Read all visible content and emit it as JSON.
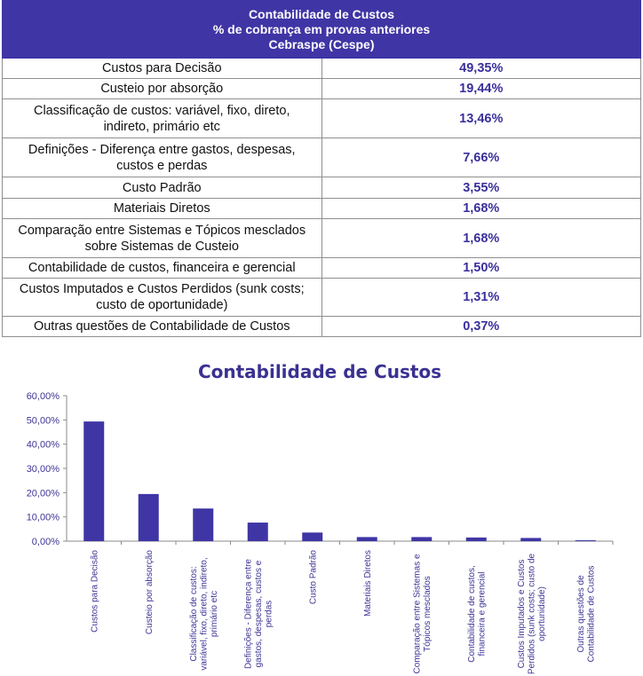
{
  "table": {
    "header_lines": [
      "Contabilidade de Custos",
      "% de cobrança em provas anteriores",
      "Cebraspe (Cespe)"
    ],
    "rows": [
      {
        "label": "Custos para Decisão",
        "value": "49,35%"
      },
      {
        "label": "Custeio por absorção",
        "value": "19,44%"
      },
      {
        "label": "Classificação de custos: variável, fixo, direto, indireto, primário etc",
        "value": "13,46%"
      },
      {
        "label": "Definições - Diferença entre gastos, despesas, custos e perdas",
        "value": "7,66%"
      },
      {
        "label": "Custo Padrão",
        "value": "3,55%"
      },
      {
        "label": "Materiais Diretos",
        "value": "1,68%"
      },
      {
        "label": "Comparação entre Sistemas e Tópicos mesclados sobre Sistemas de Custeio",
        "value": "1,68%"
      },
      {
        "label": "Contabilidade de custos, financeira e gerencial",
        "value": "1,50%"
      },
      {
        "label": "Custos Imputados e Custos Perdidos (sunk costs; custo de oportunidade)",
        "value": "1,31%"
      },
      {
        "label": "Outras questões de Contabilidade de Custos",
        "value": "0,37%"
      }
    ]
  },
  "chart_data": {
    "type": "bar",
    "title": "Contabilidade de Custos",
    "xlabel": "",
    "ylabel": "",
    "ylim": [
      0,
      60
    ],
    "yticks": [
      0,
      10,
      20,
      30,
      40,
      50,
      60
    ],
    "ytick_labels": [
      "0,00%",
      "10,00%",
      "20,00%",
      "30,00%",
      "40,00%",
      "50,00%",
      "60,00%"
    ],
    "categories": [
      "Custos para Decisão",
      "Custeio por absorção",
      "Classificação de custos: variável, fixo, direto, indireto, primário etc",
      "Definições - Diferença entre gastos, despesas, custos e perdas",
      "Custo Padrão",
      "Materiais Diretos",
      "Comparação entre Sistemas e Tópicos mesclados",
      "Contabilidade de custos, financeira e gerencial",
      "Custos Imputados e Custos Perdidos (sunk costs; custo de oportunidade)",
      "Outras questões de Contabilidade de Custos"
    ],
    "category_label_lines": [
      [
        "Custos para Decisão"
      ],
      [
        "Custeio por absorção"
      ],
      [
        "Classificação de custos:",
        "variável, fixo, direto, indireto,",
        "primário etc"
      ],
      [
        "Definições - Diferença entre",
        "gastos, despesas, custos e",
        "perdas"
      ],
      [
        "Custo Padrão"
      ],
      [
        "Materiais Diretos"
      ],
      [
        "Comparação entre Sistemas e",
        "Tópicos mesclados"
      ],
      [
        "Contabilidade de custos,",
        "financeira e gerencial"
      ],
      [
        "Custos Imputados e Custos",
        "Perdidos (sunk costs; custo de",
        "oportunidade)"
      ],
      [
        "Outras questões de",
        "Contabilidade de Custos"
      ]
    ],
    "values": [
      49.35,
      19.44,
      13.46,
      7.66,
      3.55,
      1.68,
      1.68,
      1.5,
      1.31,
      0.37
    ],
    "grid": false,
    "legend": "none",
    "bar_color": "#3f35a5"
  }
}
